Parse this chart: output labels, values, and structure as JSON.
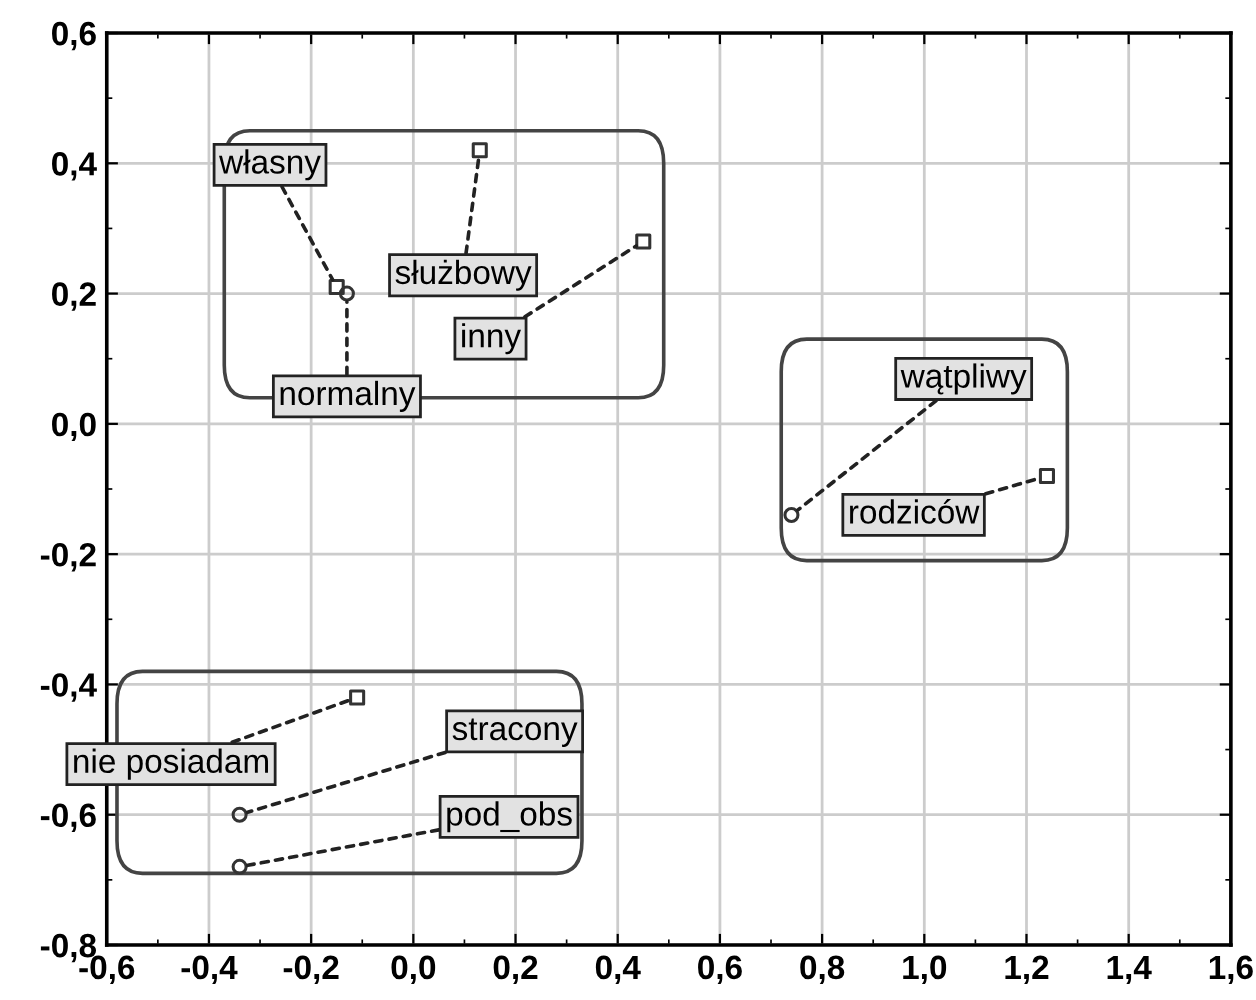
{
  "chart_data": {
    "type": "scatter",
    "series": [
      {
        "marker": "circle",
        "color": "#333333",
        "x": [
          -0.13,
          0.74,
          -0.34,
          -0.34
        ],
        "values": [
          0.2,
          -0.14,
          -0.6,
          -0.68
        ]
      },
      {
        "marker": "square",
        "color": "#333333",
        "x": [
          -0.15,
          0.13,
          0.45,
          1.24,
          -0.11
        ],
        "values": [
          0.21,
          0.42,
          0.28,
          -0.08,
          -0.42
        ]
      }
    ],
    "annotations": [
      {
        "text": "własny",
        "x": -0.15,
        "y": 0.21
      },
      {
        "text": "służbowy",
        "x": 0.13,
        "y": 0.42
      },
      {
        "text": "inny",
        "x": 0.45,
        "y": 0.28
      },
      {
        "text": "normalny",
        "x": -0.13,
        "y": 0.2
      },
      {
        "text": "wątpliwy",
        "x": 0.74,
        "y": -0.14
      },
      {
        "text": "rodziców",
        "x": 1.24,
        "y": -0.08
      },
      {
        "text": "nie posiadam",
        "x": -0.11,
        "y": -0.42
      },
      {
        "text": "stracony",
        "x": -0.34,
        "y": -0.6
      },
      {
        "text": "pod_obs",
        "x": -0.34,
        "y": -0.68
      }
    ],
    "xlim": [
      -0.6,
      1.6
    ],
    "xticks": [
      {
        "value": -0.6,
        "label": "-0,6"
      },
      {
        "value": -0.4,
        "label": "-0,4"
      },
      {
        "value": -0.2,
        "label": "-0,2"
      },
      {
        "value": 0.0,
        "label": "0,0"
      },
      {
        "value": 0.2,
        "label": "0,2"
      },
      {
        "value": 0.4,
        "label": "0,4"
      },
      {
        "value": 0.6,
        "label": "0,6"
      },
      {
        "value": 0.8,
        "label": "0,8"
      },
      {
        "value": 1.0,
        "label": "1,0"
      },
      {
        "value": 1.2,
        "label": "1,2"
      },
      {
        "value": 1.4,
        "label": "1,4"
      },
      {
        "value": 1.6,
        "label": "1,6"
      }
    ],
    "ylim": [
      -0.8,
      0.6
    ],
    "yticks": [
      {
        "value": -0.8,
        "label": "-0,8"
      },
      {
        "value": -0.6,
        "label": "-0,6"
      },
      {
        "value": -0.4,
        "label": "-0,4"
      },
      {
        "value": -0.2,
        "label": "-0,2"
      },
      {
        "value": 0.0,
        "label": "0,0"
      },
      {
        "value": 0.2,
        "label": "0,2"
      },
      {
        "value": 0.4,
        "label": "0,4"
      },
      {
        "value": 0.6,
        "label": "0,6"
      }
    ],
    "grid": true
  }
}
